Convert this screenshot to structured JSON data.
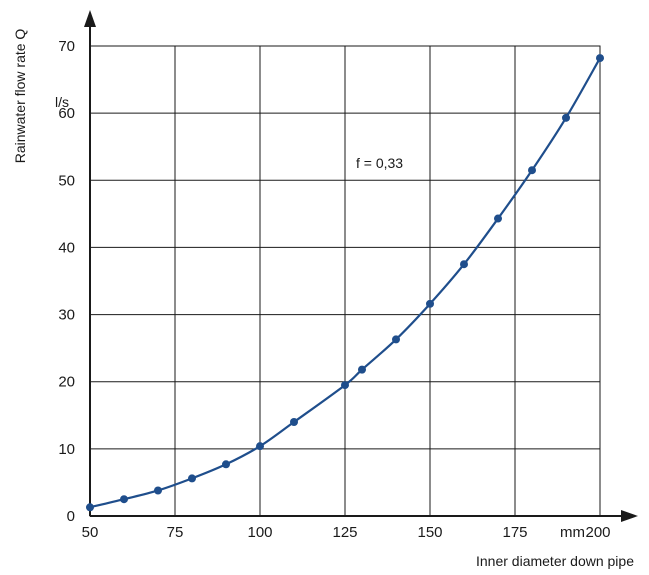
{
  "chart_data": {
    "type": "line",
    "title": "",
    "xlabel": "Inner diameter down pipe",
    "ylabel": "Rainwater flow rate Q",
    "x_unit": "mm",
    "y_unit": "l/s",
    "annotation": "f = 0,33",
    "xlim": [
      50,
      200
    ],
    "ylim": [
      0,
      70
    ],
    "x_ticks": [
      "50",
      "75",
      "100",
      "125",
      "150",
      "175",
      "200"
    ],
    "y_ticks": [
      "0",
      "10",
      "20",
      "30",
      "40",
      "50",
      "60",
      "70"
    ],
    "grid": true,
    "series": [
      {
        "color": "#1f4e8c",
        "x": [
          50,
          60,
          70,
          80,
          90,
          100,
          110,
          125,
          130,
          140,
          150,
          160,
          170,
          180,
          190,
          200
        ],
        "y": [
          1.3,
          2.5,
          3.8,
          5.6,
          7.7,
          10.4,
          14.0,
          19.5,
          21.8,
          26.3,
          31.6,
          37.5,
          44.3,
          51.5,
          59.3,
          68.2
        ]
      }
    ]
  }
}
